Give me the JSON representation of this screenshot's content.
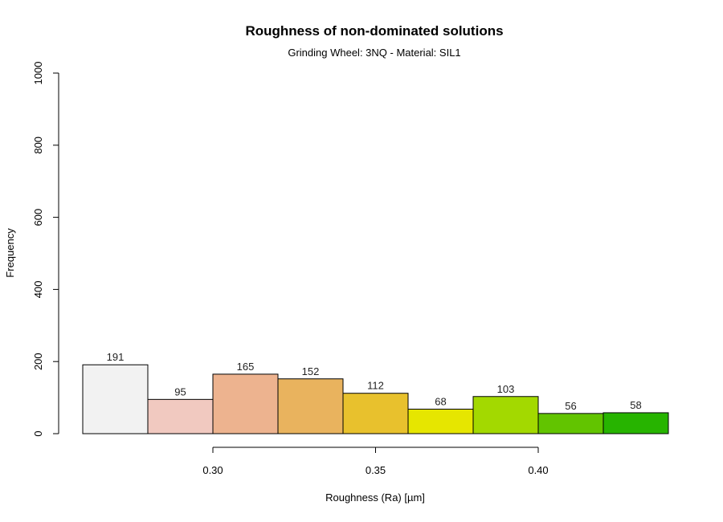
{
  "chart_data": {
    "type": "bar",
    "title": "Roughness of non-dominated solutions",
    "subtitle": "Grinding Wheel: 3NQ - Material: SIL1",
    "xlabel": "Roughness (Ra) [µm]",
    "ylabel": "Frequency",
    "bins": [
      {
        "x0": 0.26,
        "x1": 0.28,
        "value": 191,
        "color": "#f2f2f2"
      },
      {
        "x0": 0.28,
        "x1": 0.3,
        "value": 95,
        "color": "#f1c9c0"
      },
      {
        "x0": 0.3,
        "x1": 0.32,
        "value": 165,
        "color": "#edb38f"
      },
      {
        "x0": 0.32,
        "x1": 0.34,
        "value": 152,
        "color": "#e9b35e"
      },
      {
        "x0": 0.34,
        "x1": 0.36,
        "value": 112,
        "color": "#e8c12d"
      },
      {
        "x0": 0.36,
        "x1": 0.38,
        "value": 68,
        "color": "#e6e600"
      },
      {
        "x0": 0.38,
        "x1": 0.4,
        "value": 103,
        "color": "#a3d900"
      },
      {
        "x0": 0.4,
        "x1": 0.42,
        "value": 56,
        "color": "#62c400"
      },
      {
        "x0": 0.42,
        "x1": 0.44,
        "value": 58,
        "color": "#27b400"
      }
    ],
    "xlim": [
      0.26,
      0.44
    ],
    "ylim": [
      0,
      1000
    ],
    "xticks": [
      {
        "value": 0.3,
        "label": "0.30"
      },
      {
        "value": 0.35,
        "label": "0.35"
      },
      {
        "value": 0.4,
        "label": "0.40"
      }
    ],
    "yticks": [
      {
        "value": 0,
        "label": "0"
      },
      {
        "value": 200,
        "label": "200"
      },
      {
        "value": 400,
        "label": "400"
      },
      {
        "value": 600,
        "label": "600"
      },
      {
        "value": 800,
        "label": "800"
      },
      {
        "value": 1000,
        "label": "1000"
      }
    ],
    "grid": false,
    "legend": "none"
  }
}
